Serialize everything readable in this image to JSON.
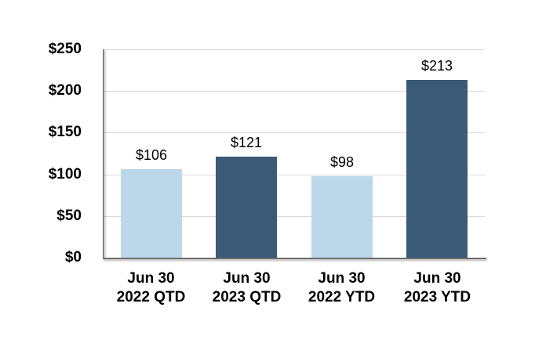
{
  "chart_data": {
    "type": "bar",
    "categories": [
      "Jun 30\n2022 QTD",
      "Jun 30\n2023 QTD",
      "Jun 30\n2022 YTD",
      "Jun 30\n2023 YTD"
    ],
    "values": [
      106,
      121,
      98,
      213
    ],
    "data_labels": [
      "$106",
      "$121",
      "$98",
      "$213"
    ],
    "bar_colors": [
      "#BCD7EA",
      "#3B5A76",
      "#BCD7EA",
      "#3B5A76"
    ],
    "title": "",
    "xlabel": "",
    "ylabel": "",
    "ylim": [
      0,
      250
    ],
    "y_ticks": [
      0,
      50,
      100,
      150,
      200,
      250
    ],
    "y_tick_labels": [
      "$0",
      "$50",
      "$100",
      "$150",
      "$200",
      "$250"
    ],
    "grid": true,
    "legend": false
  },
  "colors": {
    "light_bar": "#BCD7EA",
    "dark_bar": "#3B5A76",
    "gridline": "#D9D9D9",
    "axis_line": "#808080",
    "text": "#000000",
    "background": "#FFFFFF"
  }
}
